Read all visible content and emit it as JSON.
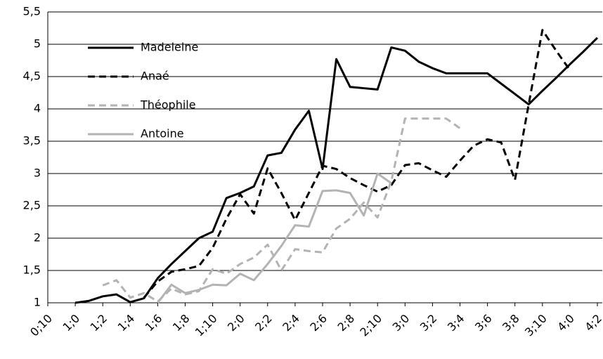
{
  "chart_data": {
    "type": "line",
    "categories": [
      "0;10",
      null,
      "1;0",
      null,
      "1;2",
      null,
      "1;4",
      null,
      "1;6",
      null,
      "1;8",
      null,
      "1;10",
      null,
      "2;0",
      null,
      "2;2",
      null,
      "2;4",
      null,
      "2;6",
      null,
      "2;8",
      null,
      "2;10",
      null,
      "3;0",
      null,
      "3;2",
      null,
      "3;4",
      null,
      "3;6",
      null,
      "3;8",
      null,
      "3;10",
      null,
      "4;0",
      null,
      "4;2"
    ],
    "series": [
      {
        "name": "Madeleine",
        "color": "#000000",
        "style": "solid",
        "values": [
          null,
          null,
          1.0,
          1.03,
          1.1,
          1.13,
          1.01,
          1.07,
          1.38,
          1.6,
          1.8,
          2.0,
          2.1,
          2.62,
          2.7,
          2.8,
          3.28,
          3.32,
          3.68,
          3.97,
          3.07,
          4.77,
          4.34,
          4.32,
          4.3,
          4.95,
          4.9,
          4.73,
          4.63,
          4.55,
          4.55,
          4.55,
          4.55,
          4.39,
          4.23,
          4.07,
          4.28,
          4.48,
          4.69,
          4.89,
          5.1
        ]
      },
      {
        "name": "Anaé",
        "color": "#000000",
        "style": "dashed",
        "values": [
          null,
          null,
          null,
          null,
          null,
          null,
          null,
          1.08,
          1.33,
          1.48,
          1.52,
          1.57,
          1.85,
          2.3,
          2.68,
          2.38,
          3.08,
          2.7,
          2.28,
          2.7,
          3.12,
          3.07,
          2.93,
          2.82,
          2.72,
          2.82,
          3.13,
          3.16,
          3.05,
          2.95,
          3.2,
          3.43,
          3.53,
          3.48,
          2.9,
          4.07,
          5.22,
          4.9,
          4.6,
          null,
          null
        ]
      },
      {
        "name": "Théophile",
        "color": "#b3b3b3",
        "style": "dashed",
        "values": [
          null,
          null,
          null,
          null,
          1.27,
          1.35,
          1.08,
          1.15,
          1.02,
          1.22,
          1.13,
          1.18,
          1.52,
          1.45,
          1.6,
          1.7,
          1.9,
          1.5,
          1.83,
          1.8,
          1.78,
          2.15,
          2.3,
          2.55,
          2.32,
          2.88,
          3.85,
          3.85,
          3.85,
          3.85,
          3.7,
          null,
          null,
          null,
          null,
          null,
          null,
          null,
          null,
          null,
          null
        ]
      },
      {
        "name": "Antoine",
        "color": "#b3b3b3",
        "style": "solid",
        "values": [
          null,
          null,
          null,
          null,
          null,
          null,
          null,
          null,
          1.0,
          1.28,
          1.15,
          1.2,
          1.28,
          1.27,
          1.45,
          1.35,
          1.6,
          1.88,
          2.2,
          2.18,
          2.73,
          2.74,
          2.7,
          2.35,
          3.0,
          2.85,
          null,
          null,
          null,
          null,
          null,
          null,
          null,
          null,
          null,
          null,
          null,
          null,
          null,
          null,
          null
        ]
      }
    ],
    "ylim": [
      1,
      5.5
    ],
    "yticks": [
      1,
      {
        "value": 1.5,
        "label": "1,5"
      },
      2,
      {
        "value": 2.5,
        "label": "2,5"
      },
      3,
      {
        "value": 3.5,
        "label": "3,5"
      },
      4,
      {
        "value": 4.5,
        "label": "4,5"
      },
      5,
      {
        "value": 5.5,
        "label": "5,5"
      }
    ],
    "grid": true,
    "legend": "upper-left"
  }
}
